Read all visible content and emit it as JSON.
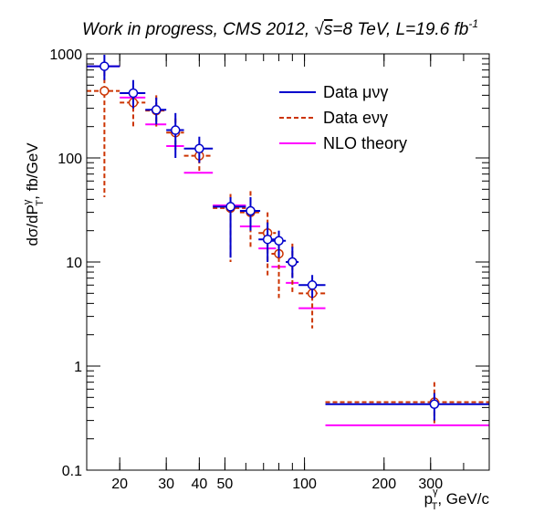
{
  "chart_data": {
    "type": "scatter",
    "title": {
      "prefix": "Work in progress, CMS 2012, ",
      "sqrt_symbol": "√",
      "sqrt_arg": "s",
      "energy": "=8 TeV, L=19.6 fb",
      "lumi_exp": "-1"
    },
    "xlabel": {
      "p": "p",
      "sup": "γ",
      "sub": "T",
      "rest": ", GeV/c"
    },
    "ylabel": {
      "main": "dσ/dP",
      "sup": "γ",
      "sub": "T",
      "rest": ", fb/GeV"
    },
    "xscale": "log",
    "yscale": "log",
    "xlim": [
      15,
      500
    ],
    "ylim": [
      0.1,
      1000
    ],
    "xticks": [
      20,
      30,
      40,
      50,
      100,
      200,
      300
    ],
    "xtick_labels": [
      "20",
      "30",
      "40",
      "50",
      "100",
      "200",
      "300"
    ],
    "yticks": [
      0.1,
      1,
      10,
      100,
      1000
    ],
    "ytick_labels": [
      "0.1",
      "1",
      "10",
      "100",
      "1000"
    ],
    "grid": false,
    "legend_position": "top-right",
    "legend": [
      {
        "label": "Data μνγ",
        "color": "#0000cc",
        "style": "solid"
      },
      {
        "label": "Data eνγ",
        "color": "#cc3300",
        "style": "dashed"
      },
      {
        "label": "NLO theory",
        "color": "#ff00ff",
        "style": "solid"
      }
    ],
    "series": [
      {
        "name": "Data μνγ",
        "color": "#0000cc",
        "style": "solid",
        "points": [
          {
            "x": 17.5,
            "y": 760,
            "xlo": 15,
            "xhi": 20,
            "ylo": 560,
            "yhi": 980
          },
          {
            "x": 22.5,
            "y": 420,
            "xlo": 20,
            "xhi": 25,
            "ylo": 300,
            "yhi": 560
          },
          {
            "x": 27.5,
            "y": 290,
            "xlo": 25,
            "xhi": 30,
            "ylo": 210,
            "yhi": 380
          },
          {
            "x": 32.5,
            "y": 185,
            "xlo": 30,
            "xhi": 35,
            "ylo": 100,
            "yhi": 270
          },
          {
            "x": 40,
            "y": 123,
            "xlo": 35,
            "xhi": 45,
            "ylo": 90,
            "yhi": 160
          },
          {
            "x": 52.5,
            "y": 34,
            "xlo": 45,
            "xhi": 60,
            "ylo": 11,
            "yhi": 42
          },
          {
            "x": 62.5,
            "y": 31,
            "xlo": 57,
            "xhi": 68,
            "ylo": 20,
            "yhi": 42
          },
          {
            "x": 72.5,
            "y": 16.5,
            "xlo": 67,
            "xhi": 78,
            "ylo": 10,
            "yhi": 24
          },
          {
            "x": 80,
            "y": 16,
            "xlo": 75,
            "xhi": 85,
            "ylo": 11,
            "yhi": 20
          },
          {
            "x": 90,
            "y": 10,
            "xlo": 85,
            "xhi": 95,
            "ylo": 7,
            "yhi": 14
          },
          {
            "x": 107,
            "y": 6,
            "xlo": 95,
            "xhi": 120,
            "ylo": 4.5,
            "yhi": 7.5
          },
          {
            "x": 310,
            "y": 0.43,
            "xlo": 120,
            "xhi": 500,
            "ylo": 0.3,
            "yhi": 0.55
          }
        ]
      },
      {
        "name": "Data eνγ",
        "color": "#cc3300",
        "style": "dashed",
        "points": [
          {
            "x": 17.5,
            "y": 440,
            "xlo": 15,
            "xhi": 20,
            "ylo": 42,
            "yhi": 680
          },
          {
            "x": 22.5,
            "y": 340,
            "xlo": 20,
            "xhi": 25,
            "ylo": 190,
            "yhi": 500
          },
          {
            "x": 27.5,
            "y": 285,
            "xlo": 25,
            "xhi": 30,
            "ylo": 200,
            "yhi": 400
          },
          {
            "x": 32.5,
            "y": 175,
            "xlo": 30,
            "xhi": 35,
            "ylo": 120,
            "yhi": 240
          },
          {
            "x": 40,
            "y": 105,
            "xlo": 35,
            "xhi": 45,
            "ylo": 75,
            "yhi": 135
          },
          {
            "x": 52.5,
            "y": 33,
            "xlo": 45,
            "xhi": 60,
            "ylo": 10,
            "yhi": 45
          },
          {
            "x": 62.5,
            "y": 30,
            "xlo": 57,
            "xhi": 68,
            "ylo": 13.5,
            "yhi": 48
          },
          {
            "x": 72.5,
            "y": 19,
            "xlo": 67,
            "xhi": 78,
            "ylo": 7,
            "yhi": 30
          },
          {
            "x": 80,
            "y": 12,
            "xlo": 75,
            "xhi": 85,
            "ylo": 4.5,
            "yhi": 18
          },
          {
            "x": 90,
            "y": 10,
            "xlo": 85,
            "xhi": 95,
            "ylo": 5,
            "yhi": 15
          },
          {
            "x": 107,
            "y": 5,
            "xlo": 95,
            "xhi": 120,
            "ylo": 2.3,
            "yhi": 6.5
          },
          {
            "x": 310,
            "y": 0.45,
            "xlo": 120,
            "xhi": 500,
            "ylo": 0.27,
            "yhi": 0.7
          }
        ]
      },
      {
        "name": "NLO theory",
        "color": "#ff00ff",
        "style": "solid",
        "points": [
          {
            "x": 17.5,
            "y": 760,
            "xlo": 15,
            "xhi": 20
          },
          {
            "x": 22.5,
            "y": 380,
            "xlo": 20,
            "xhi": 25
          },
          {
            "x": 27.5,
            "y": 210,
            "xlo": 25,
            "xhi": 30
          },
          {
            "x": 32.5,
            "y": 130,
            "xlo": 30,
            "xhi": 35
          },
          {
            "x": 40,
            "y": 72,
            "xlo": 35,
            "xhi": 45
          },
          {
            "x": 52.5,
            "y": 35,
            "xlo": 45,
            "xhi": 60
          },
          {
            "x": 62.5,
            "y": 22,
            "xlo": 57,
            "xhi": 68
          },
          {
            "x": 72.5,
            "y": 13.5,
            "xlo": 67,
            "xhi": 78
          },
          {
            "x": 80,
            "y": 9,
            "xlo": 75,
            "xhi": 85
          },
          {
            "x": 90,
            "y": 6.3,
            "xlo": 85,
            "xhi": 95
          },
          {
            "x": 107,
            "y": 3.6,
            "xlo": 95,
            "xhi": 120
          },
          {
            "x": 310,
            "y": 0.27,
            "xlo": 120,
            "xhi": 500
          }
        ]
      }
    ]
  }
}
